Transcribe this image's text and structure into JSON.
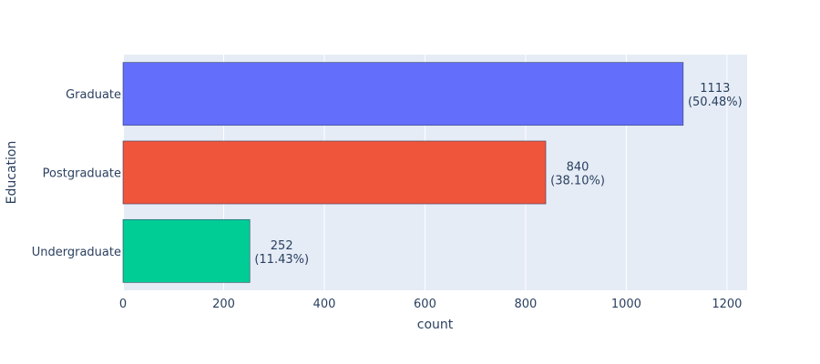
{
  "chart_data": {
    "type": "bar",
    "orientation": "horizontal",
    "categories": [
      "Graduate",
      "Postgraduate",
      "Undergraduate"
    ],
    "values": [
      1113,
      840,
      252
    ],
    "data_labels": [
      {
        "count": "1113",
        "percent": "(50.48%)"
      },
      {
        "count": "840",
        "percent": "(38.10%)"
      },
      {
        "count": "252",
        "percent": "(11.43%)"
      }
    ],
    "colors": [
      "#636efa",
      "#ef553b",
      "#00cc96"
    ],
    "xlabel": "count",
    "ylabel": "Education",
    "xlim": [
      0,
      1240
    ],
    "xticks": [
      0,
      200,
      400,
      600,
      800,
      1000,
      1200
    ],
    "xtick_labels": [
      "0",
      "200",
      "400",
      "600",
      "800",
      "1000",
      "1200"
    ],
    "grid": true,
    "plot_background": "#e5ecf6",
    "legend": "none"
  }
}
